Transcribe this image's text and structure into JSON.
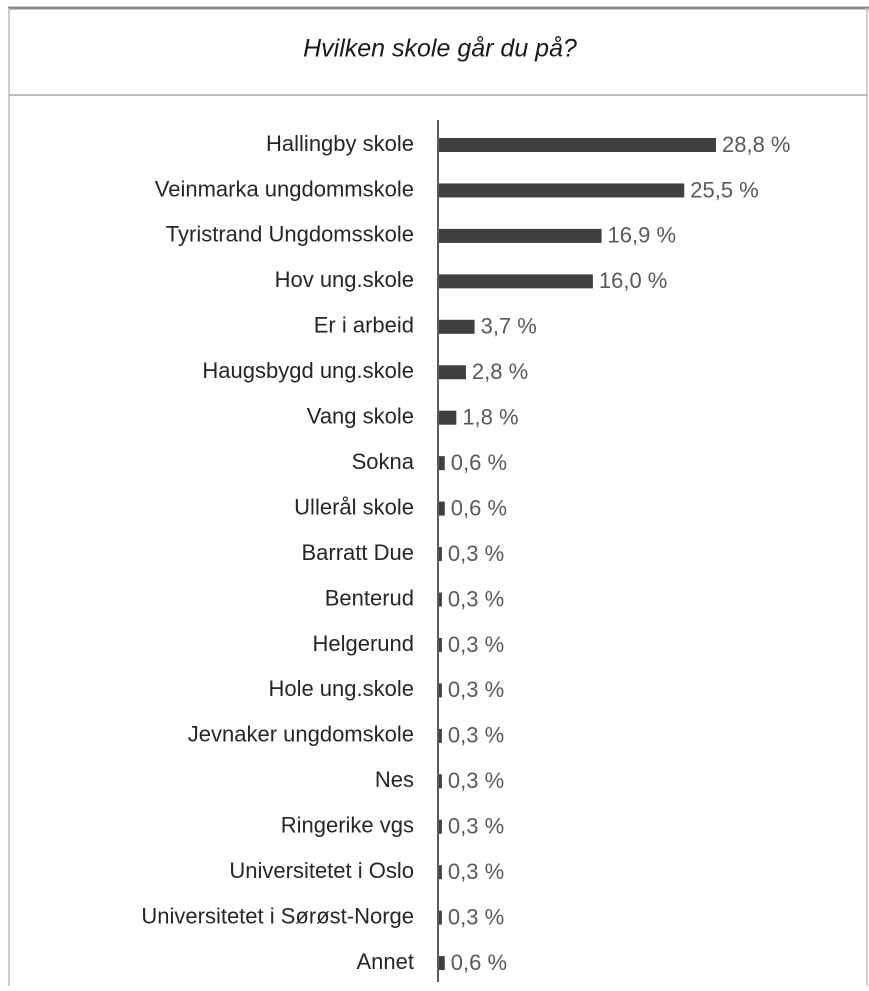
{
  "chart_data": {
    "type": "bar",
    "orientation": "horizontal",
    "title": "Hvilken skole går du på?",
    "categories": [
      "Hallingby skole",
      "Veinmarka ungdommskole",
      "Tyristrand Ungdomsskole",
      "Hov ung.skole",
      "Er i arbeid",
      "Haugsbygd ung.skole",
      "Vang skole",
      "Sokna",
      "Ullerål skole",
      "Barratt Due",
      "Benterud",
      "Helgerund",
      "Hole ung.skole",
      "Jevnaker ungdomskole",
      "Nes",
      "Ringerike vgs",
      "Universitetet i Oslo",
      "Universitetet i Sørøst-Norge",
      "Annet"
    ],
    "values": [
      28.8,
      25.5,
      16.9,
      16.0,
      3.7,
      2.8,
      1.8,
      0.6,
      0.6,
      0.3,
      0.3,
      0.3,
      0.3,
      0.3,
      0.3,
      0.3,
      0.3,
      0.3,
      0.6
    ],
    "value_labels": [
      "28,8 %",
      "25,5 %",
      "16,9 %",
      "16,0 %",
      "3,7 %",
      "2,8 %",
      "1,8 %",
      "0,6 %",
      "0,6 %",
      "0,3 %",
      "0,3 %",
      "0,3 %",
      "0,3 %",
      "0,3 %",
      "0,3 %",
      "0,3 %",
      "0,3 %",
      "0,3 %",
      "0,6 %"
    ],
    "color": "#404040"
  }
}
